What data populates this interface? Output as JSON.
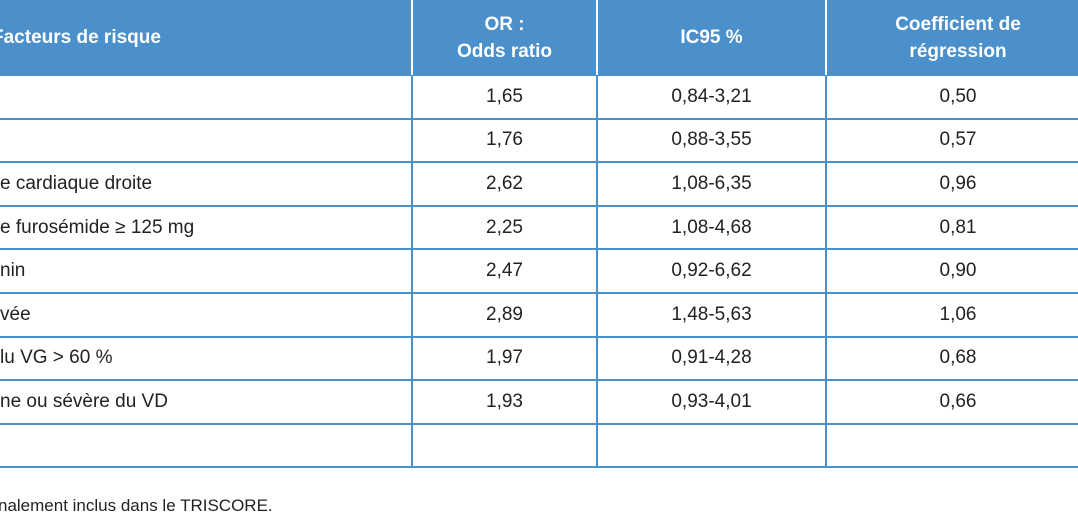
{
  "table": {
    "header": [
      "Facteurs de risque",
      "OR :\nOdds ratio",
      "IC95 %",
      "Coefficient de\nrégression"
    ],
    "rows": [
      [
        null,
        "1,65",
        "0,84-3,21",
        "0,50"
      ],
      [
        null,
        "1,76",
        "0,88-3,55",
        "0,57"
      ],
      [
        "e cardiaque droite",
        "2,62",
        "1,08-6,35",
        "0,96"
      ],
      [
        "e furosémide ≥ 125 mg",
        "2,25",
        "1,08-4,68",
        "0,81"
      ],
      [
        "nin",
        "2,47",
        "0,92-6,62",
        "0,90"
      ],
      [
        "vée",
        "2,89",
        "1,48-5,63",
        "1,06"
      ],
      [
        "lu VG > 60 %",
        "1,97",
        "0,91-4,28",
        "0,68"
      ],
      [
        "ne ou sévère du VD",
        "1,93",
        "0,93-4,01",
        "0,66"
      ],
      [
        null,
        null,
        null,
        null
      ]
    ]
  },
  "footnote": "nalement inclus dans le TRISCORE."
}
